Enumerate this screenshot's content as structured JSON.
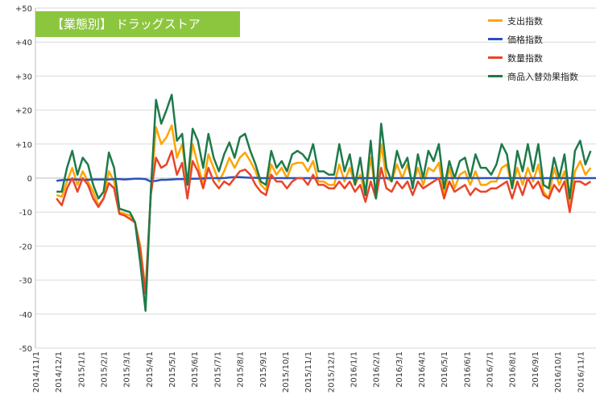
{
  "chart_data": {
    "type": "line",
    "title": "【業態別】 ドラッグストア",
    "xlabel": "",
    "ylabel": "",
    "ylim": [
      -50,
      50
    ],
    "yticks": [
      "+50",
      "+40",
      "+30",
      "+20",
      "+10",
      "0",
      "-10",
      "-20",
      "-30",
      "-40",
      "-50"
    ],
    "grid": true,
    "legend_position": "top-right",
    "x_labels": [
      "2014/11/1",
      "2014/12/1",
      "2015/1/1",
      "2015/2/1",
      "2015/3/1",
      "2015/4/1",
      "2015/5/1",
      "2015/6/1",
      "2015/7/1",
      "2015/8/1",
      "2015/9/1",
      "2015/10/1",
      "2015/11/1",
      "2015/12/1",
      "2016/1/1",
      "2016/2/1",
      "2016/3/1",
      "2016/4/1",
      "2016/5/1",
      "2016/6/1",
      "2016/7/1",
      "2016/8/1",
      "2016/9/1",
      "2016/10/1",
      "2016/11/1"
    ],
    "x_start": "2014/12/1",
    "x_step": "weekly",
    "series": [
      {
        "name": "支出指数",
        "color": "#ffa500",
        "values": [
          -5,
          -5.5,
          -1,
          3,
          -2,
          2,
          -1,
          -4,
          -8,
          -6,
          2,
          -1,
          -10,
          -10.5,
          -11,
          -13,
          -20,
          -33,
          -5,
          15,
          10,
          12,
          15.5,
          6,
          10,
          -2,
          10,
          4,
          -2,
          7,
          3,
          -1,
          2,
          6,
          3,
          6,
          7.5,
          5,
          2,
          -2,
          -3.5,
          4,
          1,
          3,
          0,
          4,
          4.5,
          4.5,
          2,
          5,
          -1,
          -1,
          -2,
          -2,
          4,
          -1,
          3,
          -2,
          1,
          -5,
          6,
          -5,
          10,
          0,
          -1,
          4,
          0,
          4,
          -2,
          3,
          -2,
          3,
          2,
          4.5,
          -5,
          3,
          -3,
          1,
          2,
          -2,
          2,
          -2,
          -2,
          -1,
          -1,
          3,
          4,
          -3,
          3,
          -2,
          3,
          -1,
          4,
          -4,
          -6,
          3,
          -2,
          2,
          -8,
          2,
          5,
          1,
          3
        ]
      },
      {
        "name": "価格指数",
        "color": "#2a52be",
        "values": [
          -0.8,
          -0.6,
          -0.5,
          -0.4,
          -0.4,
          -0.5,
          -0.5,
          -0.4,
          -0.4,
          -0.4,
          -0.4,
          -0.3,
          -0.3,
          -0.4,
          -0.3,
          -0.2,
          -0.2,
          -0.3,
          -1,
          -0.8,
          -0.5,
          -0.5,
          -0.4,
          -0.3,
          -0.3,
          -0.3,
          -0.2,
          -0.2,
          -0.1,
          0,
          0,
          0,
          0,
          0.2,
          0.3,
          0.3,
          0.2,
          0.1,
          0.1,
          0,
          0,
          0,
          0,
          0,
          0,
          0,
          0,
          0,
          0,
          0,
          0,
          0,
          0,
          0,
          0,
          0,
          0,
          0,
          0,
          0,
          0,
          0,
          0,
          0,
          0,
          0,
          0,
          0,
          0,
          0,
          0,
          0,
          0,
          0,
          0,
          0,
          0,
          0,
          0,
          0,
          0,
          0,
          0,
          0,
          0,
          0,
          0,
          0,
          0,
          0,
          0,
          0,
          0,
          0,
          0,
          0,
          0,
          0,
          0,
          0,
          0,
          0,
          0,
          0
        ]
      },
      {
        "name": "数量指数",
        "color": "#e8452c",
        "values": [
          -6,
          -8,
          -3,
          0,
          -4,
          0,
          -2,
          -6,
          -8.5,
          -6,
          -1.5,
          -3,
          -10.5,
          -11,
          -12,
          -13,
          -21,
          -34,
          -5,
          6,
          3,
          4,
          8,
          1,
          4.5,
          -6,
          5,
          2,
          -3,
          3,
          -1,
          -3,
          -1,
          -2,
          0,
          2,
          2.5,
          1,
          -2,
          -4,
          -5,
          1,
          -1,
          -1,
          -3,
          -1,
          0,
          0,
          -2,
          1,
          -2,
          -2,
          -3,
          -3,
          -1,
          -3,
          -1,
          -4,
          -2,
          -7,
          -1,
          -6,
          3,
          -3,
          -4,
          -1,
          -3,
          -1,
          -5,
          -1,
          -3,
          -2,
          -1,
          0,
          -6,
          -1,
          -4,
          -3,
          -2,
          -5,
          -3,
          -4,
          -4,
          -3,
          -3,
          -2,
          -1,
          -6,
          -1,
          -5,
          0,
          -3,
          -1,
          -5,
          -6,
          -2,
          -4,
          -1,
          -10,
          -1,
          -1,
          -2,
          -1
        ]
      },
      {
        "name": "商品入替効果指数",
        "color": "#1e7a4a",
        "values": [
          -4,
          -4,
          3,
          8,
          1,
          6,
          4,
          -2,
          -6,
          -4,
          7.5,
          3,
          -9,
          -9.5,
          -10,
          -13,
          -25,
          -39,
          -4,
          23,
          16,
          20,
          24.5,
          11,
          13,
          -2,
          14.5,
          11,
          3,
          13,
          6,
          2,
          7,
          10.5,
          6,
          12,
          13,
          8,
          4,
          -1,
          -2,
          8,
          3,
          5,
          2,
          7,
          8,
          7,
          5,
          10,
          2,
          2,
          1,
          1,
          10,
          2,
          7,
          -2,
          6,
          -5,
          11,
          -6,
          16,
          3,
          -1,
          8,
          3,
          6,
          -3,
          7,
          0,
          8,
          5,
          10,
          -3,
          5,
          0,
          5,
          6,
          0,
          7,
          3,
          3,
          1,
          4,
          10,
          7,
          -3,
          8,
          2,
          10,
          2,
          10,
          -2,
          -3,
          6,
          0,
          7,
          -6,
          8,
          11,
          4,
          8
        ]
      }
    ]
  }
}
